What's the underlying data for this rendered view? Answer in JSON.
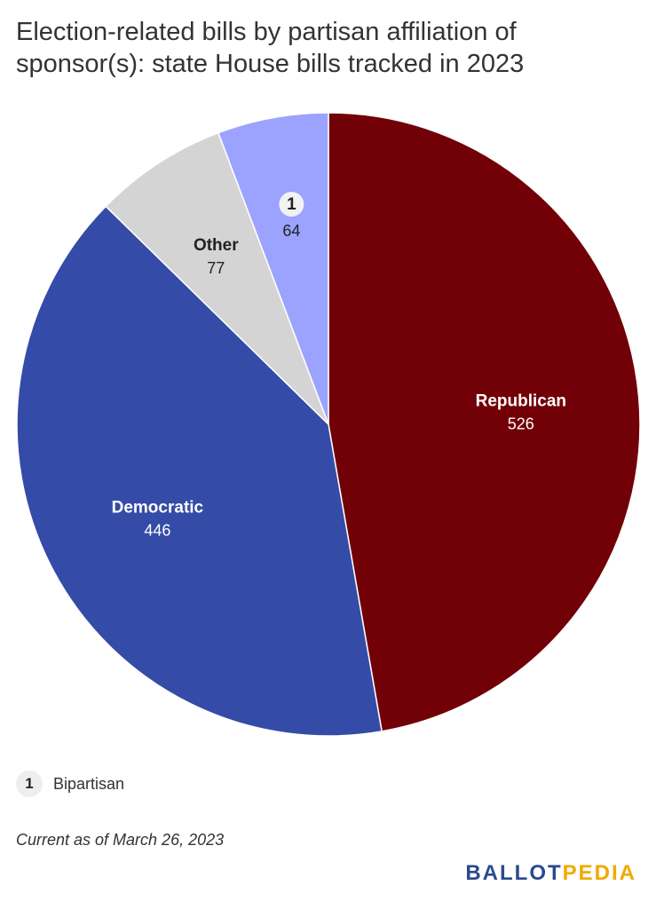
{
  "title": "Election-related bills by partisan affiliation of sponsor(s): state House bills tracked in 2023",
  "chart_data": {
    "type": "pie",
    "title": "Election-related bills by partisan affiliation of sponsor(s): state House bills tracked in 2023",
    "slices": [
      {
        "label": "Republican",
        "value": 526,
        "color": "#720007",
        "text_color": "#ffffff",
        "label_style": "text"
      },
      {
        "label": "Democratic",
        "value": 446,
        "color": "#354ba8",
        "text_color": "#ffffff",
        "label_style": "text"
      },
      {
        "label": "Other",
        "value": 77,
        "color": "#d4d4d4",
        "text_color": "#222222",
        "label_style": "text"
      },
      {
        "label": "1",
        "value": 64,
        "color": "#9ba3ff",
        "text_color": "#222222",
        "label_style": "key"
      }
    ]
  },
  "legend": {
    "key": "1",
    "text": "Bipartisan"
  },
  "note": "Current as of March 26, 2023",
  "logo": {
    "part1": "BALLOT",
    "part2": "PEDIA"
  }
}
